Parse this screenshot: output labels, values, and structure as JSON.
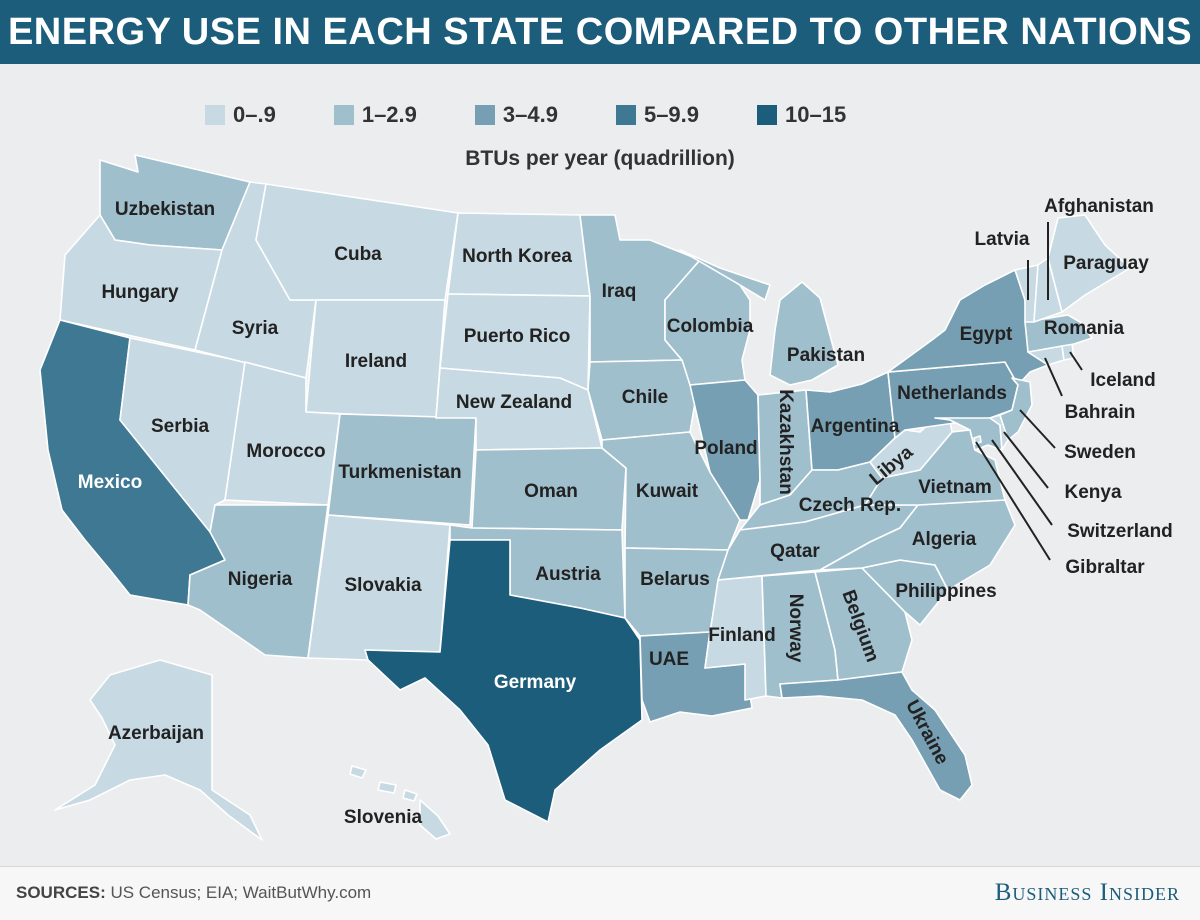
{
  "title": "ENERGY USE IN EACH STATE COMPARED TO OTHER NATIONS",
  "subtitle": "BTUs per year (quadrillion)",
  "legend": [
    {
      "label": "0–.9",
      "color": "#c7d9e2"
    },
    {
      "label": "1–2.9",
      "color": "#a0bfcd"
    },
    {
      "label": "3–4.9",
      "color": "#769fb3"
    },
    {
      "label": "5–9.9",
      "color": "#3f7892"
    },
    {
      "label": "10–15",
      "color": "#1c5d7b"
    }
  ],
  "states": {
    "WA": {
      "nation": "Uzbekistan",
      "bin": 1
    },
    "OR": {
      "nation": "Hungary",
      "bin": 0
    },
    "CA": {
      "nation": "Mexico",
      "bin": 3
    },
    "NV": {
      "nation": "Serbia",
      "bin": 0
    },
    "ID": {
      "nation": "Syria",
      "bin": 0
    },
    "MT": {
      "nation": "Cuba",
      "bin": 0
    },
    "WY": {
      "nation": "Ireland",
      "bin": 0
    },
    "UT": {
      "nation": "Morocco",
      "bin": 0
    },
    "AZ": {
      "nation": "Nigeria",
      "bin": 1
    },
    "CO": {
      "nation": "Turkmenistan",
      "bin": 1
    },
    "NM": {
      "nation": "Slovakia",
      "bin": 0
    },
    "ND": {
      "nation": "North Korea",
      "bin": 0
    },
    "SD": {
      "nation": "Puerto Rico",
      "bin": 0
    },
    "NE": {
      "nation": "New Zealand",
      "bin": 0
    },
    "KS": {
      "nation": "Oman",
      "bin": 1
    },
    "OK": {
      "nation": "Austria",
      "bin": 1
    },
    "TX": {
      "nation": "Germany",
      "bin": 4
    },
    "MN": {
      "nation": "Iraq",
      "bin": 1
    },
    "IA": {
      "nation": "Chile",
      "bin": 1
    },
    "MO": {
      "nation": "Kuwait",
      "bin": 1
    },
    "AR": {
      "nation": "Belarus",
      "bin": 1
    },
    "LA": {
      "nation": "UAE",
      "bin": 2
    },
    "WI": {
      "nation": "Colombia",
      "bin": 1
    },
    "IL": {
      "nation": "Poland",
      "bin": 2
    },
    "MI": {
      "nation": "Pakistan",
      "bin": 1
    },
    "IN": {
      "nation": "Kazakhstan",
      "bin": 1
    },
    "OH": {
      "nation": "Argentina",
      "bin": 2
    },
    "KY": {
      "nation": "Czech Rep.",
      "bin": 1
    },
    "TN": {
      "nation": "Qatar",
      "bin": 1
    },
    "MS": {
      "nation": "Finland",
      "bin": 0
    },
    "AL": {
      "nation": "Norway",
      "bin": 1
    },
    "GA": {
      "nation": "Belgium",
      "bin": 1
    },
    "FL": {
      "nation": "Ukraine",
      "bin": 2
    },
    "SC": {
      "nation": "Philippines",
      "bin": 1
    },
    "NC": {
      "nation": "Algeria",
      "bin": 1
    },
    "VA": {
      "nation": "Vietnam",
      "bin": 1
    },
    "WV": {
      "nation": "Libya",
      "bin": 0
    },
    "PA": {
      "nation": "Netherlands",
      "bin": 2
    },
    "NY": {
      "nation": "Egypt",
      "bin": 2
    },
    "VT": {
      "nation": "Latvia",
      "bin": 0
    },
    "NH": {
      "nation": "Afghanistan",
      "bin": 0
    },
    "ME": {
      "nation": "Paraguay",
      "bin": 0
    },
    "MA": {
      "nation": "Romania",
      "bin": 1
    },
    "RI": {
      "nation": "Iceland",
      "bin": 0
    },
    "CT": {
      "nation": "Bahrain",
      "bin": 0
    },
    "NJ": {
      "nation": "Sweden",
      "bin": 1
    },
    "DE": {
      "nation": "Kenya",
      "bin": 0
    },
    "MD": {
      "nation": "Switzerland",
      "bin": 1
    },
    "DC": {
      "nation": "Gibraltar",
      "bin": 0
    },
    "AK": {
      "nation": "Azerbaijan",
      "bin": 0
    },
    "HI": {
      "nation": "Slovenia",
      "bin": 0
    }
  },
  "footer": {
    "sources_label": "SOURCES:",
    "sources_text": "US Census; EIA; WaitButWhy.com",
    "brand": "Business Insider"
  }
}
